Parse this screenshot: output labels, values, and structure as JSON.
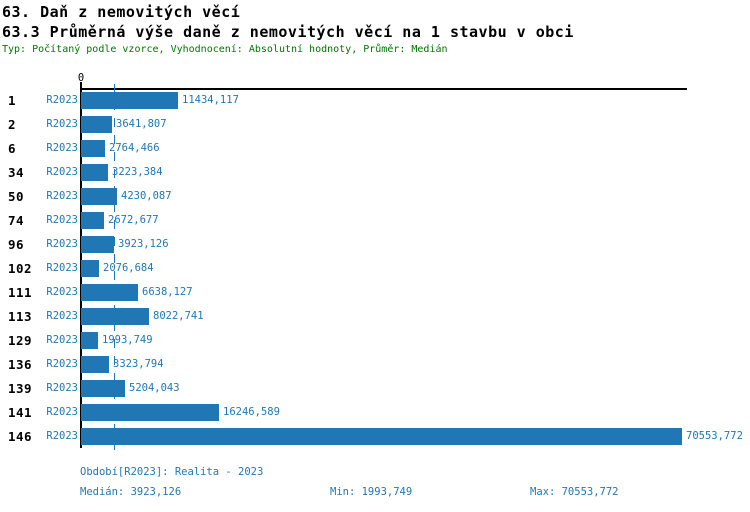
{
  "header": {
    "title": "63. Daň z nemovitých věcí",
    "subtitle": "63.3 Průměrná výše daně z nemovitých věcí na 1 stavbu v obci",
    "meta": "Typ: Počítaný podle vzorce, Vyhodnocení: Absolutní hodnoty, Průměr: Medián"
  },
  "chart_data": {
    "type": "bar",
    "orientation": "horizontal",
    "title": "63.3 Průměrná výše daně z nemovitých věcí na 1 stavbu v obci",
    "axis_zero_label": "0",
    "series_label": "R2023",
    "categories": [
      "1",
      "2",
      "6",
      "34",
      "50",
      "74",
      "96",
      "102",
      "111",
      "113",
      "129",
      "136",
      "139",
      "141",
      "146"
    ],
    "values": [
      11434.117,
      3641.807,
      2764.466,
      3223.384,
      4230.087,
      2672.677,
      3923.126,
      2076.684,
      6638.127,
      8022.741,
      1993.749,
      3323.794,
      5204.043,
      16246.589,
      70553.772
    ],
    "value_labels": [
      "11434,117",
      "3641,807",
      "2764,466",
      "3223,384",
      "4230,087",
      "2672,677",
      "3923,126",
      "2076,684",
      "6638,127",
      "8022,741",
      "1993,749",
      "3323,794",
      "5204,043",
      "16246,589",
      "70553,772"
    ],
    "xlim": [
      0,
      70553.772
    ],
    "median": 3923.126,
    "median_line": true,
    "grid": false,
    "legend_position": "none",
    "bar_color": "#2177b4",
    "meta_color": "#007700"
  },
  "footer": {
    "period": "Období[R2023]: Realita - 2023",
    "median": "Medián: 3923,126",
    "min": "Min: 1993,749",
    "max": "Max: 70553,772"
  }
}
